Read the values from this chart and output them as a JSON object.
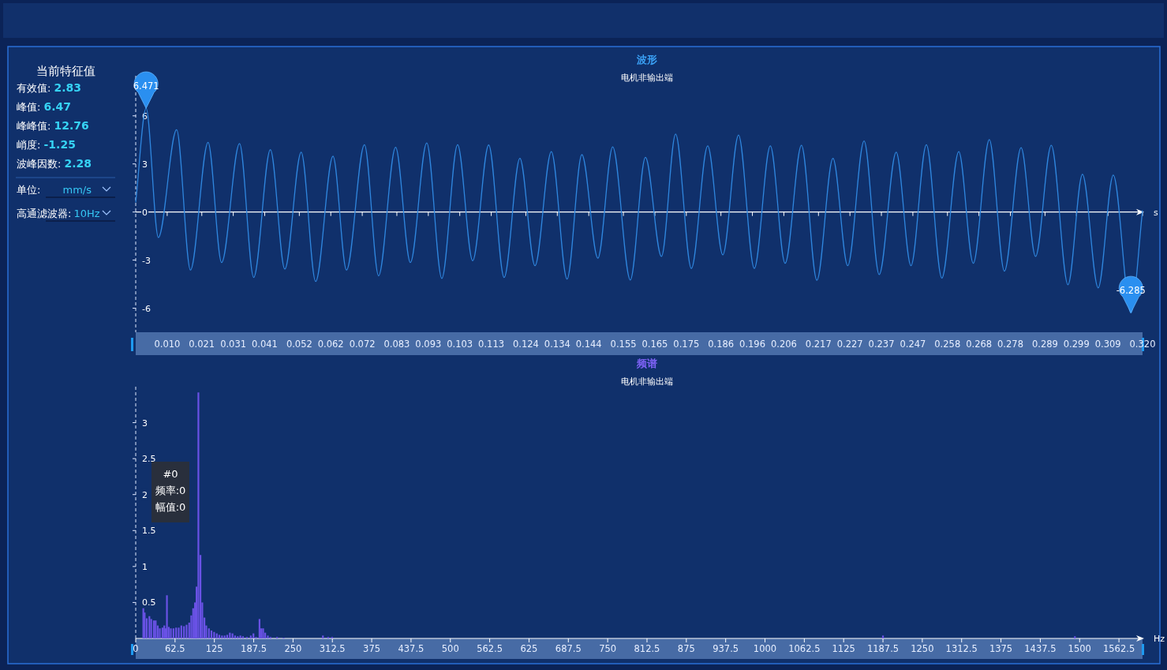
{
  "chart_data": [
    {
      "type": "other",
      "title": "当前特征值",
      "annotations": [
        "有效值: 2.83",
        "峰值: 6.47",
        "峰峰值: 12.76",
        "峭度: -1.25",
        "波峰因数: 2.28",
        "单位: mm/s",
        "高通滤波器:10Hz"
      ]
    },
    {
      "type": "line",
      "title": "波形",
      "subtitle": "电机非输出端",
      "xlabel": "s",
      "x": [
        0,
        0.0033,
        0.0072,
        0.013,
        0.0174,
        0.023,
        0.0273,
        0.033,
        0.0375,
        0.0428,
        0.0474,
        0.0526,
        0.0572,
        0.0627,
        0.067,
        0.0727,
        0.0772,
        0.0826,
        0.0873,
        0.0925,
        0.0973,
        0.1023,
        0.1071,
        0.1122,
        0.1171,
        0.1221,
        0.1269,
        0.1321,
        0.1371,
        0.1418,
        0.1469,
        0.1516,
        0.1572,
        0.162,
        0.1671,
        0.1716,
        0.1766,
        0.1818,
        0.1866,
        0.1916,
        0.1966,
        0.2017,
        0.2064,
        0.2116,
        0.2165,
        0.2216,
        0.2263,
        0.2315,
        0.2363,
        0.2417,
        0.2464,
        0.2513,
        0.2562,
        0.2616,
        0.2662,
        0.2713,
        0.2761,
        0.2814,
        0.286,
        0.291,
        0.2963,
        0.3009,
        0.3059,
        0.3107,
        0.3163,
        0.32
      ],
      "series": [
        {
          "color": "#2f86de",
          "values": [
            0.6,
            6.471,
            -1.59,
            5.13,
            -3.62,
            4.35,
            -3.15,
            4.27,
            -4.08,
            3.89,
            -3.56,
            3.73,
            -4.33,
            3.48,
            -3.62,
            4.2,
            -3.98,
            4.04,
            -3.15,
            4.31,
            -4.14,
            4.2,
            -3.04,
            4.18,
            -4.08,
            3.35,
            -3.35,
            3.77,
            -4.18,
            3.58,
            -2.88,
            4.06,
            -4.24,
            3.41,
            -2.77,
            4.86,
            -3.52,
            4.12,
            -2.67,
            4.8,
            -3.52,
            4.12,
            -3.2,
            4.16,
            -4.26,
            3.35,
            -3.35,
            4.43,
            -3.9,
            3.73,
            -3.35,
            4.2,
            -4.12,
            3.77,
            -3.2,
            4.52,
            -3.69,
            4.01,
            -2.77,
            4.16,
            -4.54,
            2.35,
            -4.73,
            2.3,
            -6.285,
            0.1
          ]
        }
      ],
      "xlim": [
        0,
        0.32
      ],
      "ylim": [
        -7.5,
        8.5
      ],
      "xticks": [
        {
          "value": 0.01,
          "label": "0.010"
        },
        0.021,
        0.031,
        0.041,
        0.052,
        0.062,
        0.072,
        0.083,
        0.093,
        0.103,
        0.113,
        0.124,
        0.134,
        0.144,
        0.155,
        0.165,
        0.175,
        0.186,
        0.196,
        0.206,
        0.217,
        0.227,
        0.237,
        0.247,
        0.258,
        0.268,
        0.278,
        0.289,
        0.299,
        0.309,
        {
          "value": 0.32,
          "label": "0.320"
        }
      ],
      "yticks": [
        -6,
        -3,
        0,
        3,
        6
      ],
      "annotations": [
        {
          "text": "6.471",
          "x": 0.0033,
          "y": 6.471
        },
        {
          "text": "-6.285",
          "x": 0.3163,
          "y": -6.285
        }
      ]
    },
    {
      "type": "bar",
      "title": "频谱",
      "subtitle": "电机非输出端",
      "xlabel": "Hz",
      "x": [
        12.1,
        14.2,
        17.5,
        21.7,
        24.6,
        28.8,
        31.7,
        35,
        38.3,
        42.5,
        45.4,
        47.5,
        49.6,
        52.5,
        55.8,
        60,
        64.2,
        68.3,
        72.5,
        76.7,
        80.8,
        85,
        88.3,
        91.3,
        94.2,
        96.7,
        99.6,
        102.9,
        105.8,
        109.2,
        112.1,
        116.3,
        120.4,
        124.6,
        128.8,
        132.9,
        137.1,
        141.3,
        145.4,
        149.6,
        153.8,
        157.9,
        162.1,
        166.3,
        170.4,
        176.7,
        182.9,
        187.1,
        191.3,
        196.7,
        199.6,
        202.5,
        205.8,
        210,
        214.2,
        224.6,
        235,
        297.5,
        305.8,
        312.1,
        1187.5,
        1492.5
      ],
      "series": [
        {
          "color": "#6a52e6",
          "values": [
            0.42,
            0.36,
            0.28,
            0.31,
            0.27,
            0.25,
            0.25,
            0.18,
            0.14,
            0.15,
            0.18,
            0.14,
            0.6,
            0.16,
            0.14,
            0.14,
            0.15,
            0.15,
            0.18,
            0.17,
            0.19,
            0.22,
            0.32,
            0.42,
            0.5,
            0.72,
            3.42,
            1.16,
            0.5,
            0.29,
            0.18,
            0.14,
            0.11,
            0.09,
            0.07,
            0.05,
            0.04,
            0.04,
            0.05,
            0.08,
            0.07,
            0.04,
            0.03,
            0.04,
            0.03,
            0.02,
            0.04,
            0.07,
            0.02,
            0.27,
            0.14,
            0.14,
            0.08,
            0.04,
            0.02,
            0.02,
            0.01,
            0.04,
            0.02,
            0.02,
            0.04,
            0.03
          ]
        }
      ],
      "xlim": [
        0,
        1600
      ],
      "ylim": [
        0,
        3.5
      ],
      "xticks": [
        0,
        62.5,
        125,
        187.5,
        250,
        312.5,
        375,
        437.5,
        500,
        562.5,
        625,
        687.5,
        750,
        812.5,
        875,
        937.5,
        1000,
        1062.5,
        1125,
        1187.5,
        1250,
        1312.5,
        1375,
        1437.5,
        1500,
        1562.5
      ],
      "yticks": [
        0.5,
        1,
        1.5,
        2,
        2.5,
        3
      ],
      "annotations": [
        "#0",
        "频率:0",
        "幅值:0"
      ]
    }
  ]
}
